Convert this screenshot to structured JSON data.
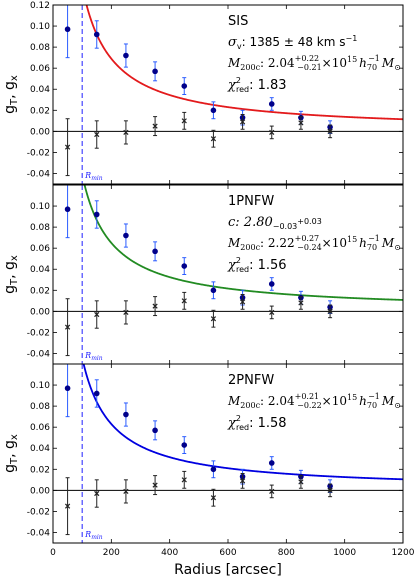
{
  "figure": {
    "x_label": "Radius [arcsec]",
    "y_label": "g",
    "y_label_sub_t": "T",
    "y_label_sep": ", g",
    "y_label_sub_x": "x",
    "rmin_label": "R",
    "rmin_sub": "min"
  },
  "chart_data": [
    {
      "type": "scatter",
      "title": "SIS",
      "xlabel": "Radius [arcsec]",
      "ylabel": "gT, gx",
      "xlim": [
        0,
        1200
      ],
      "ylim": [
        -0.05,
        0.12
      ],
      "yticks": [
        "0.12",
        "0.10",
        "0.08",
        "0.06",
        "0.04",
        "0.02",
        "0.00",
        "-0.02",
        "-0.04"
      ],
      "yticks_values": [
        0.12,
        0.1,
        0.08,
        0.06,
        0.04,
        0.02,
        0.0,
        -0.02,
        -0.04
      ],
      "r_min": 100,
      "model_color": "#e31a1c",
      "model_norm": 13.8,
      "series": [
        {
          "name": "gT",
          "marker": "circle",
          "color": "#00008b",
          "x": [
            50,
            150,
            250,
            350,
            450,
            550,
            650,
            750,
            850,
            950
          ],
          "y": [
            0.097,
            0.092,
            0.072,
            0.057,
            0.043,
            0.02,
            0.013,
            0.026,
            0.013,
            0.004
          ],
          "err": [
            0.027,
            0.013,
            0.011,
            0.009,
            0.008,
            0.008,
            0.007,
            0.006,
            0.006,
            0.006
          ]
        },
        {
          "name": "gx",
          "marker": "x",
          "color": "#222222",
          "x": [
            50,
            150,
            250,
            350,
            450,
            550,
            650,
            750,
            850,
            950
          ],
          "y": [
            -0.015,
            -0.003,
            -0.001,
            0.005,
            0.01,
            -0.007,
            0.009,
            -0.001,
            0.008,
            0.0
          ],
          "err": [
            0.027,
            0.013,
            0.011,
            0.009,
            0.008,
            0.008,
            0.007,
            0.006,
            0.006,
            0.006
          ]
        }
      ],
      "annotations": {
        "line1": "SIS",
        "line2": "σ",
        "line2_sub": "v",
        "line2_rest": ": 1385 ± 48 km s",
        "line2_sup": "−1",
        "line3_lhs": "M",
        "line3_lhs_sub": "200c",
        "line3_val": ": 2.04",
        "line3_sup": "+0.22",
        "line3_sub": "−0.21",
        "line3_rest": "×10",
        "line3_exp": "15",
        "line3_h": "h",
        "line3_h_sub": "70",
        "line3_h_sup": "−1",
        "line3_msun": "M",
        "line3_msun_sub": "⊙",
        "line4": "χ",
        "line4_sup": "2",
        "line4_sub": "red",
        "line4_rest": ": 1.83"
      }
    },
    {
      "type": "scatter",
      "title": "1PNFW",
      "xlabel": "Radius [arcsec]",
      "ylabel": "gT, gx",
      "xlim": [
        0,
        1200
      ],
      "ylim": [
        -0.05,
        0.12
      ],
      "yticks": [
        "0.10",
        "0.08",
        "0.06",
        "0.04",
        "0.02",
        "0.00",
        "-0.02",
        "-0.04"
      ],
      "yticks_values": [
        0.1,
        0.08,
        0.06,
        0.04,
        0.02,
        0.0,
        -0.02,
        -0.04
      ],
      "r_min": 100,
      "model_color": "#228b22",
      "model_norm": 13.0,
      "series": [
        {
          "name": "gT",
          "marker": "circle",
          "color": "#00008b",
          "x": [
            50,
            150,
            250,
            350,
            450,
            550,
            650,
            750,
            850,
            950
          ],
          "y": [
            0.097,
            0.092,
            0.072,
            0.057,
            0.043,
            0.02,
            0.013,
            0.026,
            0.013,
            0.004
          ],
          "err": [
            0.027,
            0.013,
            0.011,
            0.009,
            0.008,
            0.008,
            0.007,
            0.006,
            0.006,
            0.006
          ]
        },
        {
          "name": "gx",
          "marker": "x",
          "color": "#222222",
          "x": [
            50,
            150,
            250,
            350,
            450,
            550,
            650,
            750,
            850,
            950
          ],
          "y": [
            -0.015,
            -0.003,
            -0.001,
            0.005,
            0.01,
            -0.007,
            0.009,
            -0.001,
            0.008,
            0.0
          ],
          "err": [
            0.027,
            0.013,
            0.011,
            0.009,
            0.008,
            0.008,
            0.007,
            0.006,
            0.006,
            0.006
          ]
        }
      ],
      "annotations": {
        "line1": "1PNFW",
        "line2": "c: 2.80",
        "line2_sup": "+0.03",
        "line2_sub": "−0.03",
        "line3_lhs": "M",
        "line3_lhs_sub": "200c",
        "line3_val": ": 2.22",
        "line3_sup": "+0.27",
        "line3_sub": "−0.24",
        "line3_rest": "×10",
        "line3_exp": "15",
        "line3_h": "h",
        "line3_h_sub": "70",
        "line3_h_sup": "−1",
        "line3_msun": "M",
        "line3_msun_sub": "⊙",
        "line4": "χ",
        "line4_sup": "2",
        "line4_sub": "red",
        "line4_rest": ": 1.56"
      }
    },
    {
      "type": "scatter",
      "title": "2PNFW",
      "xlabel": "Radius [arcsec]",
      "ylabel": "gT, gx",
      "xlim": [
        0,
        1200
      ],
      "ylim": [
        -0.05,
        0.12
      ],
      "xticks": [
        "0",
        "200",
        "400",
        "600",
        "800",
        "1000",
        "1200"
      ],
      "xticks_values": [
        0,
        200,
        400,
        600,
        800,
        1000,
        1200
      ],
      "yticks": [
        "0.10",
        "0.08",
        "0.06",
        "0.04",
        "0.02",
        "0.00",
        "-0.02",
        "-0.04"
      ],
      "yticks_values": [
        0.1,
        0.08,
        0.06,
        0.04,
        0.02,
        0.0,
        -0.02,
        -0.04
      ],
      "r_min": 100,
      "model_color": "#0000e0",
      "model_norm": 12.6,
      "series": [
        {
          "name": "gT",
          "marker": "circle",
          "color": "#00008b",
          "x": [
            50,
            150,
            250,
            350,
            450,
            550,
            650,
            750,
            850,
            950
          ],
          "y": [
            0.097,
            0.092,
            0.072,
            0.057,
            0.043,
            0.02,
            0.013,
            0.026,
            0.013,
            0.004
          ],
          "err": [
            0.027,
            0.013,
            0.011,
            0.009,
            0.008,
            0.008,
            0.007,
            0.006,
            0.006,
            0.006
          ]
        },
        {
          "name": "gx",
          "marker": "x",
          "color": "#222222",
          "x": [
            50,
            150,
            250,
            350,
            450,
            550,
            650,
            750,
            850,
            950
          ],
          "y": [
            -0.015,
            -0.003,
            -0.001,
            0.005,
            0.01,
            -0.007,
            0.009,
            -0.001,
            0.008,
            0.0
          ],
          "err": [
            0.027,
            0.013,
            0.011,
            0.009,
            0.008,
            0.008,
            0.007,
            0.006,
            0.006,
            0.006
          ]
        }
      ],
      "annotations": {
        "line1": "2PNFW",
        "line3_lhs": "M",
        "line3_lhs_sub": "200c",
        "line3_val": ": 2.04",
        "line3_sup": "+0.21",
        "line3_sub": "−0.22",
        "line3_rest": "×10",
        "line3_exp": "15",
        "line3_h": "h",
        "line3_h_sub": "70",
        "line3_h_sup": "−1",
        "line3_msun": "M",
        "line3_msun_sub": "⊙",
        "line4": "χ",
        "line4_sup": "2",
        "line4_sub": "red",
        "line4_rest": ": 1.58"
      }
    }
  ]
}
